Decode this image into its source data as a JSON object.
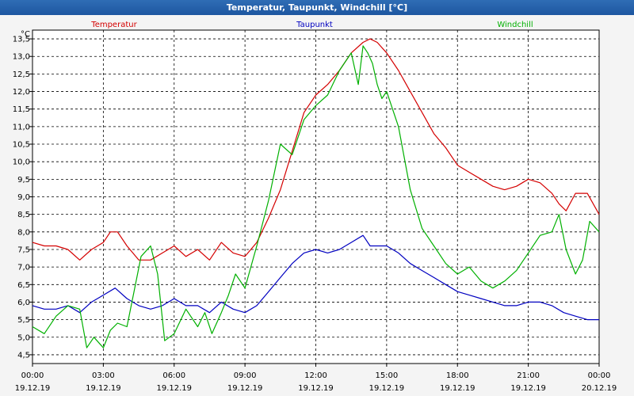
{
  "window": {
    "title": "Temperatur, Taupunkt, Windchill [°C]"
  },
  "chart_data": {
    "type": "line",
    "unit": "°C",
    "ylim": [
      4.25,
      13.75
    ],
    "y_ticks": [
      "4,5",
      "5,0",
      "5,5",
      "6,0",
      "6,5",
      "7,0",
      "7,5",
      "8,0",
      "8,5",
      "9,0",
      "9,5",
      "10,0",
      "10,5",
      "11,0",
      "11,5",
      "12,0",
      "12,5",
      "13,0",
      "13,5"
    ],
    "xlim": [
      0,
      24
    ],
    "x_ticks": [
      {
        "time": "00:00",
        "date": "19.12.19"
      },
      {
        "time": "03:00",
        "date": "19.12.19"
      },
      {
        "time": "06:00",
        "date": "19.12.19"
      },
      {
        "time": "09:00",
        "date": "19.12.19"
      },
      {
        "time": "12:00",
        "date": "19.12.19"
      },
      {
        "time": "15:00",
        "date": "19.12.19"
      },
      {
        "time": "18:00",
        "date": "19.12.19"
      },
      {
        "time": "21:00",
        "date": "19.12.19"
      },
      {
        "time": "00:00",
        "date": "20.12.19"
      }
    ],
    "grid": true,
    "legend_position": "top",
    "series": [
      {
        "name": "Temperatur",
        "color": "#d40000",
        "x": [
          0,
          0.5,
          1,
          1.5,
          2,
          2.5,
          3,
          3.3,
          3.6,
          4,
          4.5,
          5,
          5.5,
          6,
          6.5,
          7,
          7.5,
          8,
          8.5,
          9,
          9.5,
          10,
          10.5,
          11,
          11.5,
          12,
          12.5,
          13,
          13.5,
          14,
          14.3,
          14.6,
          15,
          15.5,
          16,
          16.5,
          17,
          17.5,
          18,
          18.5,
          19,
          19.5,
          20,
          20.5,
          21,
          21.5,
          22,
          22.3,
          22.6,
          23,
          23.5,
          24
        ],
        "values": [
          7.7,
          7.6,
          7.6,
          7.5,
          7.2,
          7.5,
          7.7,
          8.0,
          8.0,
          7.6,
          7.2,
          7.2,
          7.4,
          7.6,
          7.3,
          7.5,
          7.2,
          7.7,
          7.4,
          7.3,
          7.7,
          8.4,
          9.2,
          10.3,
          11.4,
          11.9,
          12.2,
          12.6,
          13.1,
          13.4,
          13.5,
          13.4,
          13.1,
          12.6,
          12.0,
          11.4,
          10.8,
          10.4,
          9.9,
          9.7,
          9.5,
          9.3,
          9.2,
          9.3,
          9.5,
          9.4,
          9.1,
          8.8,
          8.6,
          9.1,
          9.1,
          8.5
        ]
      },
      {
        "name": "Taupunkt",
        "color": "#0000c0",
        "x": [
          0,
          0.5,
          1,
          1.5,
          2,
          2.5,
          3,
          3.5,
          4,
          4.5,
          5,
          5.5,
          6,
          6.5,
          7,
          7.5,
          8,
          8.5,
          9,
          9.5,
          10,
          10.5,
          11,
          11.5,
          12,
          12.5,
          13,
          13.5,
          14,
          14.3,
          14.6,
          15,
          15.5,
          16,
          16.5,
          17,
          17.5,
          18,
          18.5,
          19,
          19.5,
          20,
          20.5,
          21,
          21.5,
          22,
          22.5,
          23,
          23.5,
          24
        ],
        "values": [
          5.9,
          5.8,
          5.8,
          5.9,
          5.7,
          6.0,
          6.2,
          6.4,
          6.1,
          5.9,
          5.8,
          5.9,
          6.1,
          5.9,
          5.9,
          5.7,
          6.0,
          5.8,
          5.7,
          5.9,
          6.3,
          6.7,
          7.1,
          7.4,
          7.5,
          7.4,
          7.5,
          7.7,
          7.9,
          7.6,
          7.6,
          7.6,
          7.4,
          7.1,
          6.9,
          6.7,
          6.5,
          6.3,
          6.2,
          6.1,
          6.0,
          5.9,
          5.9,
          6.0,
          6.0,
          5.9,
          5.7,
          5.6,
          5.5,
          5.5
        ]
      },
      {
        "name": "Windchill",
        "color": "#00b000",
        "x": [
          0,
          0.5,
          1,
          1.5,
          2,
          2.3,
          2.6,
          3,
          3.3,
          3.6,
          4,
          4.3,
          4.6,
          5,
          5.3,
          5.6,
          6,
          6.5,
          7,
          7.3,
          7.6,
          8,
          8.3,
          8.6,
          9,
          9.5,
          10,
          10.5,
          11,
          11.5,
          12,
          12.5,
          13,
          13.5,
          13.8,
          14,
          14.2,
          14.4,
          14.6,
          14.8,
          15,
          15.5,
          16,
          16.5,
          17,
          17.5,
          18,
          18.5,
          19,
          19.5,
          20,
          20.5,
          21,
          21.5,
          22,
          22.3,
          22.6,
          23,
          23.3,
          23.6,
          24
        ],
        "values": [
          5.3,
          5.1,
          5.6,
          5.9,
          5.8,
          4.7,
          5.0,
          4.7,
          5.2,
          5.4,
          5.3,
          6.3,
          7.3,
          7.6,
          6.8,
          4.9,
          5.1,
          5.8,
          5.3,
          5.7,
          5.1,
          5.7,
          6.2,
          6.8,
          6.4,
          7.6,
          8.9,
          10.5,
          10.2,
          11.2,
          11.6,
          11.9,
          12.6,
          13.1,
          12.2,
          13.3,
          13.1,
          12.8,
          12.2,
          11.8,
          12.0,
          11.0,
          9.2,
          8.1,
          7.6,
          7.1,
          6.8,
          7.0,
          6.6,
          6.4,
          6.6,
          6.9,
          7.4,
          7.9,
          8.0,
          8.5,
          7.5,
          6.8,
          7.2,
          8.3,
          8.0
        ]
      }
    ]
  }
}
